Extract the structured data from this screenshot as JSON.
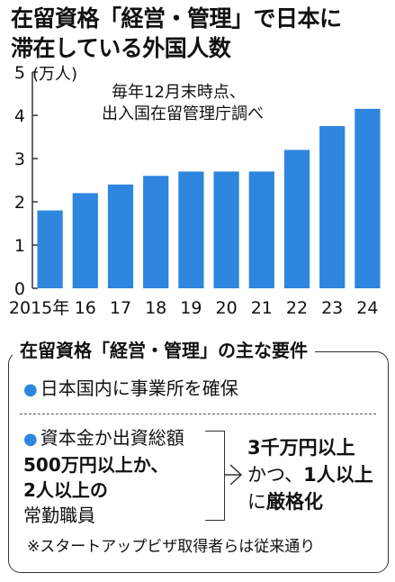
{
  "title": {
    "line1": "在留資格「経営・管理」で日本に",
    "line2": "滞在している外国人数"
  },
  "chart_data": {
    "type": "bar",
    "categories": [
      "2015年",
      "16",
      "17",
      "18",
      "19",
      "20",
      "21",
      "22",
      "23",
      "24"
    ],
    "values": [
      1.8,
      2.2,
      2.4,
      2.6,
      2.7,
      2.7,
      2.7,
      3.2,
      3.75,
      4.15
    ],
    "ylim": [
      0,
      5
    ],
    "yticks": [
      "0",
      "1",
      "2",
      "3",
      "4",
      "5"
    ],
    "unit_label": "(万人)",
    "annotation": [
      "毎年12月末時点、",
      "出入国在留管理庁調べ"
    ],
    "bar_color": "#2e86de",
    "grid": false
  },
  "requirements": {
    "title": "在留資格「経営・管理」の主な要件",
    "bullet": "●",
    "item1": "日本国内に事業所を確保",
    "item2": {
      "line1": "資本金か出資総額",
      "line2": "500万円以上か、",
      "line3": "2人以上の",
      "line4": "常勤職員"
    },
    "result": {
      "line1": "3千万円以上",
      "line2a": "かつ、",
      "line2b": "1人以上",
      "line3a": "に",
      "line3b": "厳格化"
    },
    "note": "※スタートアップビザ取得者らは従来通り"
  }
}
